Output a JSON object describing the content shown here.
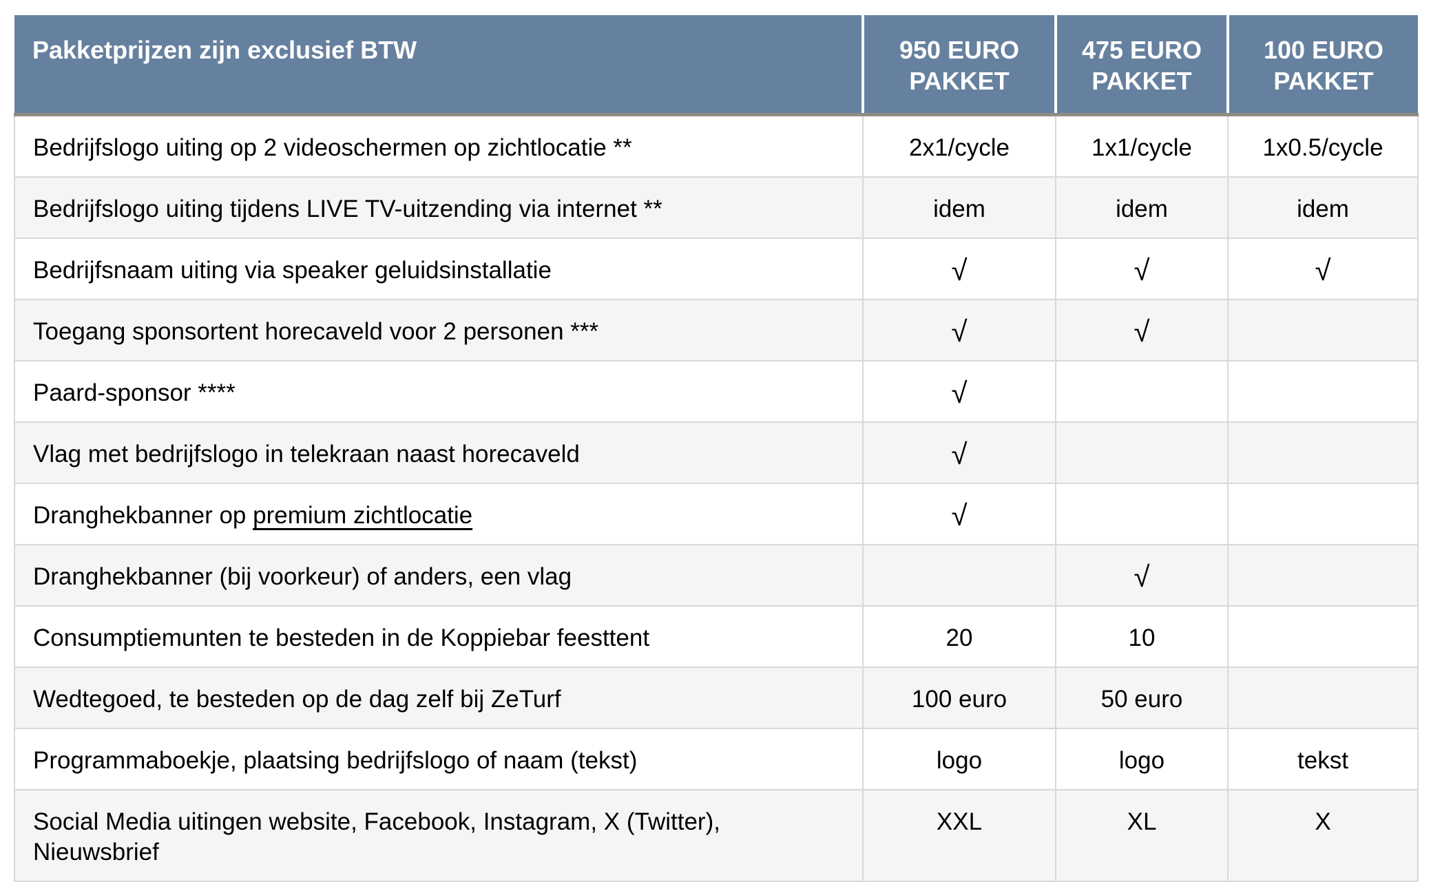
{
  "table": {
    "header": {
      "title": "Pakketprijzen zijn exclusief BTW",
      "columns": [
        "950 EURO PAKKET",
        "475 EURO PAKKET",
        "100 EURO PAKKET"
      ]
    },
    "checkmark_glyph": "√",
    "rows": [
      {
        "label": "Bedrijfslogo uiting op 2 videoschermen op zichtlocatie **",
        "values": [
          "2x1/cycle",
          "1x1/cycle",
          "1x0.5/cycle"
        ]
      },
      {
        "label": "Bedrijfslogo uiting tijdens LIVE TV-uitzending via internet **",
        "values": [
          "idem",
          "idem",
          "idem"
        ]
      },
      {
        "label": "Bedrijfsnaam uiting via speaker geluidsinstallatie",
        "values": [
          "√",
          "√",
          "√"
        ]
      },
      {
        "label": "Toegang sponsortent horecaveld voor 2 personen ***",
        "values": [
          "√",
          "√",
          ""
        ]
      },
      {
        "label": "Paard-sponsor ****",
        "values": [
          "√",
          "",
          ""
        ]
      },
      {
        "label": "Vlag met bedrijfslogo in telekraan naast horecaveld",
        "values": [
          "√",
          "",
          ""
        ]
      },
      {
        "label_pre": "Dranghekbanner op ",
        "label_underline": "premium zichtlocatie",
        "values": [
          "√",
          "",
          ""
        ]
      },
      {
        "label": "Dranghekbanner (bij voorkeur) of anders, een vlag",
        "values": [
          "",
          "√",
          ""
        ]
      },
      {
        "label": "Consumptiemunten te besteden in de Koppiebar feesttent",
        "values": [
          "20",
          "10",
          ""
        ]
      },
      {
        "label": "Wedtegoed, te besteden op de dag zelf bij ZeTurf",
        "values": [
          "100 euro",
          "50 euro",
          ""
        ]
      },
      {
        "label": "Programmaboekje, plaatsing bedrijfslogo of naam (tekst)",
        "values": [
          "logo",
          "logo",
          "tekst"
        ]
      },
      {
        "label": "Social Media uitingen website, Facebook, Instagram, X (Twitter), Nieuwsbrief",
        "values": [
          "XXL",
          "XL",
          "X"
        ]
      }
    ],
    "colors": {
      "header_bg": "#66819F",
      "header_text": "#FFFFFF",
      "header_bottom_border": "#8F8C84",
      "border": "#D8D8D8",
      "row_bg": "#FFFFFF",
      "row_alt_bg": "#F5F5F3",
      "text": "#000000"
    }
  }
}
